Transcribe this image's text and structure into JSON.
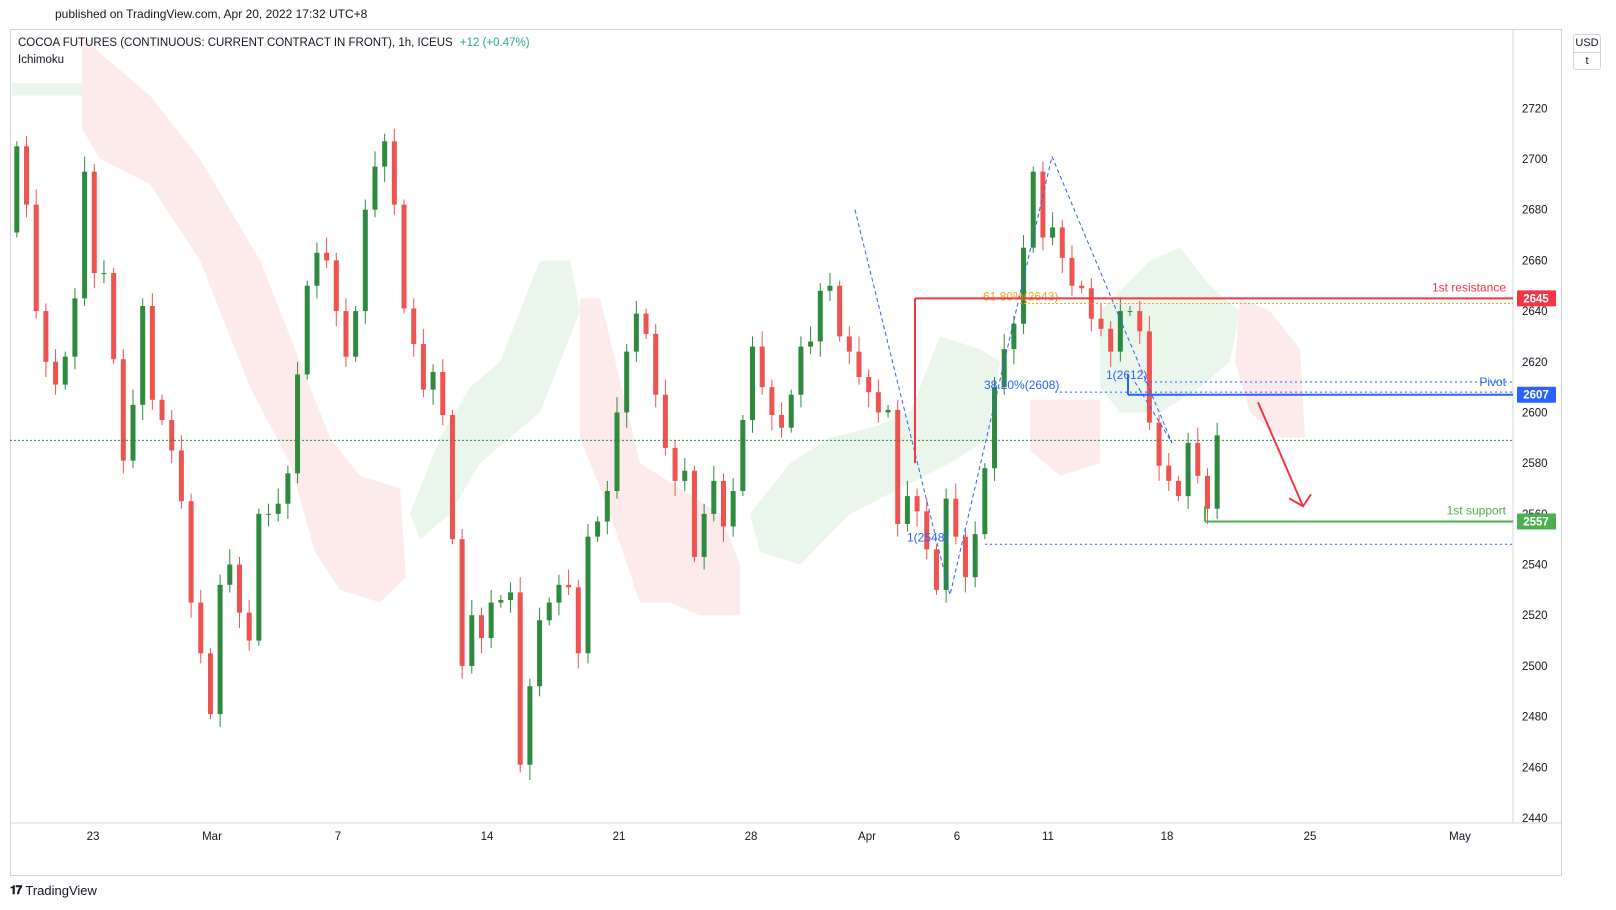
{
  "header": {
    "published": "published on TradingView.com, Apr 20, 2022 17:32 UTC+8"
  },
  "legend": {
    "symbol": "COCOA FUTURES (CONTINUOUS: CURRENT CONTRACT IN FRONT), 1h, ICEUS",
    "change": "+12 (+0.47%)",
    "indicator": "Ichimoku"
  },
  "price_scale": {
    "currency": "USD",
    "unit": "t"
  },
  "footer": {
    "brand": "TradingView"
  },
  "colors": {
    "up": "#26a69a",
    "up_candle": "#2e8b3e",
    "down": "#ef5350",
    "resistance": "#f23645",
    "pivot": "#2962ff",
    "support": "#4caf50",
    "kumo_bull": "#e8f5e9",
    "kumo_bear": "#fde8e8",
    "fib": "#2962ff",
    "fib_level": "#f5a623",
    "arrow": "#f23645"
  },
  "chart_data": {
    "type": "candlestick",
    "instrument": "COCOA FUTURES (CONTINUOUS: CURRENT CONTRACT IN FRONT)",
    "interval": "1h",
    "x_ticks": [
      "23",
      "Mar",
      "7",
      "14",
      "21",
      "28",
      "Apr",
      "6",
      "11",
      "18",
      "25",
      "May"
    ],
    "y_ticks": [
      2440,
      2460,
      2480,
      2500,
      2520,
      2540,
      2560,
      2580,
      2600,
      2620,
      2640,
      2660,
      2680,
      2700,
      2720
    ],
    "ylim": [
      2437,
      2748
    ],
    "last_price": 2589,
    "price_path": [
      [
        2671,
        2705,
        2682,
        2640,
        2620,
        2611,
        2622,
        2645,
        2695,
        2655,
        2655,
        2621,
        2581,
        2603,
        2642,
        2605,
        2597,
        2585,
        2565,
        2525,
        2505,
        2481,
        2532,
        2540,
        2521,
        2510,
        2560,
        2560,
        2564,
        2576,
        2615,
        2650,
        2663,
        2660,
        2640,
        2622,
        2640,
        2680,
        2697,
        2707,
        2682,
        2641,
        2627,
        2609,
        2616,
        2599,
        2550,
        2500,
        2520,
        2511,
        2525,
        2526,
        2529,
        2461,
        2492,
        2518,
        2525,
        2532,
        2531,
        2505,
        2551,
        2557,
        2569,
        2600,
        2624,
        2639,
        2631,
        2607,
        2586,
        2573,
        2577,
        2543,
        2560,
        2573,
        2555,
        2569,
        2597,
        2626,
        2610,
        2599,
        2594,
        2607,
        2626,
        2628,
        2648,
        2650,
        2630,
        2624,
        2614,
        2608,
        2600,
        2601,
        2556,
        2567,
        2561,
        2546,
        2530,
        2566,
        2551,
        2535,
        2552,
        2578,
        2610,
        2625,
        2635,
        2665,
        2695,
        2669,
        2673,
        2661,
        2650,
        2649,
        2637,
        2633,
        2624,
        2640,
        2640,
        2632,
        2596,
        2579,
        2573,
        2567,
        2588,
        2575,
        2562,
        2591
      ]
    ],
    "ichimoku_cloud": "shaded kumo, green (bullish) and red (bearish), projected ahead",
    "annotations": [
      {
        "label": "1st resistance",
        "price": 2645,
        "color": "#f23645"
      },
      {
        "label": "Pivot",
        "price": 2607,
        "color": "#2962ff"
      },
      {
        "label": "1st support",
        "price": 2557,
        "color": "#4caf50"
      }
    ],
    "fibonacci": [
      {
        "label": "61.80%(2643)",
        "price": 2643
      },
      {
        "label": "38.20%(2608)",
        "price": 2608
      },
      {
        "label": "1(2612)",
        "price": 2612
      },
      {
        "label": "1(2548)",
        "price": 2548
      }
    ],
    "price_labels": [
      "2645",
      "2607",
      "2557"
    ],
    "projection": "down arrow toward 1st support",
    "grid": false
  }
}
